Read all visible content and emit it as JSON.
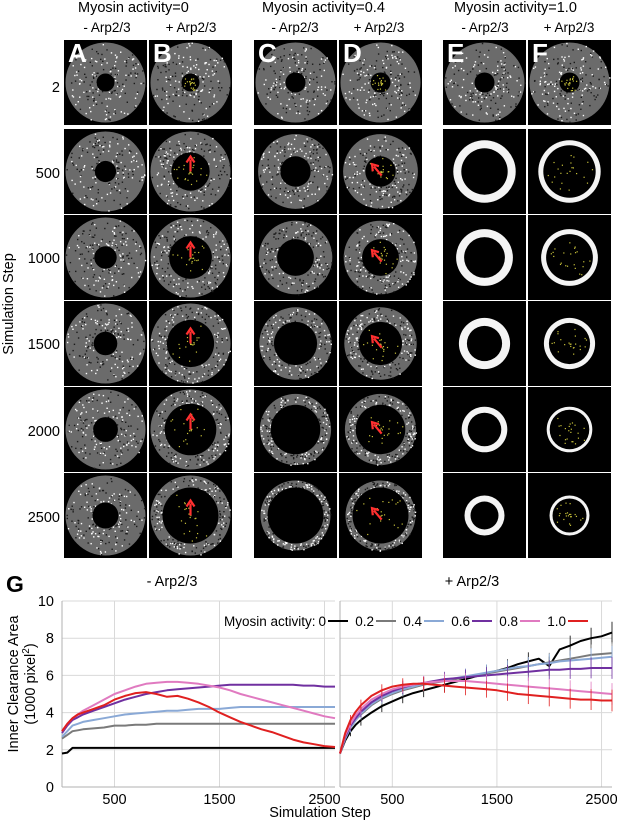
{
  "figure": {
    "group_titles": [
      "Myosin activity=0",
      "Myosin activity=0.4",
      "Myosin activity=1.0"
    ],
    "column_labels": [
      "- Arp2/3",
      "+ Arp2/3",
      "- Arp2/3",
      "+ Arp2/3",
      "- Arp2/3",
      "+ Arp2/3"
    ],
    "panel_letters": [
      "A",
      "B",
      "C",
      "D",
      "E",
      "F"
    ],
    "row_labels": [
      "2",
      "500",
      "1000",
      "1500",
      "2000",
      "2500"
    ],
    "row_axis_label": "Simulation Step"
  },
  "panel_g": {
    "letter": "G",
    "left_title": "- Arp2/3",
    "right_title": "+ Arp2/3",
    "legend_label": "Myosin activity:",
    "ylabel_line1": "Inner Clearance Area",
    "ylabel_line2": "(1000 pixel",
    "ylabel_sup": "2",
    "ylabel_end": ")",
    "xlabel": "Simulation Step"
  },
  "chart_data": {
    "type": "line",
    "xlabel": "Simulation Step",
    "ylabel": "Inner Clearance Area (1000 pixel2)",
    "ylim": [
      0,
      10
    ],
    "yticks": [
      0,
      2,
      4,
      6,
      8,
      10
    ],
    "xticks": [
      500,
      1500,
      2500
    ],
    "xlim": [
      0,
      2600
    ],
    "grid": true,
    "legend_position": "top-right",
    "series_colors": {
      "0": "#000000",
      "0.2": "#7a7a7a",
      "0.4": "#8aa9d6",
      "0.6": "#7030a0",
      "0.8": "#e07ac0",
      "1.0": "#e02020"
    },
    "legend_entries": [
      "0",
      "0.2",
      "0.4",
      "0.6",
      "0.8",
      "1.0"
    ],
    "panels": [
      {
        "name": "- Arp2/3",
        "x": [
          0,
          50,
          100,
          150,
          200,
          300,
          400,
          500,
          600,
          700,
          800,
          900,
          1000,
          1100,
          1200,
          1300,
          1400,
          1500,
          1600,
          1700,
          1800,
          1900,
          2000,
          2100,
          2200,
          2300,
          2400,
          2500,
          2600
        ],
        "series": [
          {
            "name": "0",
            "values": [
              1.8,
              1.85,
              2.1,
              2.1,
              2.1,
              2.1,
              2.1,
              2.1,
              2.1,
              2.1,
              2.1,
              2.1,
              2.1,
              2.1,
              2.1,
              2.1,
              2.1,
              2.1,
              2.1,
              2.1,
              2.1,
              2.1,
              2.1,
              2.1,
              2.1,
              2.1,
              2.1,
              2.1,
              2.1
            ]
          },
          {
            "name": "0.2",
            "values": [
              2.6,
              2.8,
              3.0,
              3.05,
              3.1,
              3.15,
              3.2,
              3.3,
              3.3,
              3.35,
              3.35,
              3.4,
              3.4,
              3.4,
              3.4,
              3.4,
              3.4,
              3.4,
              3.4,
              3.4,
              3.4,
              3.4,
              3.4,
              3.4,
              3.4,
              3.4,
              3.4,
              3.4,
              3.4
            ]
          },
          {
            "name": "0.4",
            "values": [
              2.7,
              3.0,
              3.3,
              3.4,
              3.5,
              3.6,
              3.7,
              3.8,
              3.9,
              3.95,
              4.0,
              4.05,
              4.1,
              4.1,
              4.15,
              4.2,
              4.2,
              4.2,
              4.25,
              4.3,
              4.3,
              4.3,
              4.3,
              4.3,
              4.3,
              4.3,
              4.3,
              4.3,
              4.3
            ]
          },
          {
            "name": "0.6",
            "values": [
              2.9,
              3.3,
              3.6,
              3.75,
              3.9,
              4.1,
              4.3,
              4.5,
              4.7,
              4.85,
              5.0,
              5.1,
              5.2,
              5.25,
              5.3,
              5.35,
              5.4,
              5.45,
              5.5,
              5.5,
              5.5,
              5.5,
              5.5,
              5.5,
              5.5,
              5.45,
              5.45,
              5.4,
              5.4
            ]
          },
          {
            "name": "0.8",
            "values": [
              3.0,
              3.4,
              3.7,
              3.9,
              4.1,
              4.4,
              4.7,
              5.0,
              5.2,
              5.4,
              5.55,
              5.6,
              5.65,
              5.65,
              5.6,
              5.55,
              5.45,
              5.35,
              5.2,
              5.0,
              4.85,
              4.7,
              4.55,
              4.4,
              4.25,
              4.1,
              3.95,
              3.8,
              3.7
            ]
          },
          {
            "name": "1.0",
            "values": [
              3.0,
              3.4,
              3.7,
              3.9,
              4.0,
              4.2,
              4.4,
              4.7,
              4.9,
              5.05,
              5.1,
              5.0,
              4.85,
              4.9,
              4.75,
              4.55,
              4.3,
              4.0,
              3.75,
              3.5,
              3.3,
              3.1,
              2.95,
              2.75,
              2.55,
              2.4,
              2.3,
              2.2,
              2.15
            ]
          }
        ]
      },
      {
        "name": "+ Arp2/3",
        "x": [
          0,
          50,
          100,
          150,
          200,
          300,
          400,
          500,
          600,
          700,
          800,
          900,
          1000,
          1100,
          1200,
          1300,
          1400,
          1500,
          1600,
          1700,
          1800,
          1900,
          2000,
          2100,
          2200,
          2300,
          2400,
          2500,
          2600
        ],
        "series": [
          {
            "name": "0",
            "values": [
              1.8,
              2.5,
              3.0,
              3.35,
              3.6,
              4.0,
              4.35,
              4.6,
              4.85,
              5.05,
              5.2,
              5.35,
              5.5,
              5.65,
              5.8,
              5.95,
              6.1,
              6.25,
              6.4,
              6.6,
              6.75,
              6.9,
              6.5,
              7.4,
              7.6,
              7.85,
              8.0,
              8.1,
              8.3
            ]
          },
          {
            "name": "0.2",
            "values": [
              1.8,
              2.6,
              3.2,
              3.6,
              3.9,
              4.4,
              4.75,
              5.0,
              5.2,
              5.35,
              5.5,
              5.6,
              5.7,
              5.8,
              5.9,
              6.0,
              6.1,
              6.2,
              6.3,
              6.4,
              6.5,
              6.6,
              6.7,
              6.8,
              6.9,
              7.0,
              7.1,
              7.15,
              7.2
            ]
          },
          {
            "name": "0.4",
            "values": [
              1.8,
              2.6,
              3.2,
              3.6,
              3.95,
              4.45,
              4.8,
              5.05,
              5.25,
              5.4,
              5.55,
              5.65,
              5.75,
              5.85,
              5.95,
              6.05,
              6.15,
              6.25,
              6.35,
              6.45,
              6.5,
              6.6,
              6.65,
              6.75,
              6.8,
              6.85,
              6.9,
              6.95,
              7.0
            ]
          },
          {
            "name": "0.6",
            "values": [
              1.8,
              2.7,
              3.3,
              3.7,
              4.05,
              4.55,
              4.9,
              5.15,
              5.35,
              5.5,
              5.6,
              5.7,
              5.8,
              5.85,
              5.9,
              5.95,
              6.0,
              6.05,
              6.1,
              6.15,
              6.2,
              6.25,
              6.3,
              6.3,
              6.35,
              6.35,
              6.4,
              6.4,
              6.4
            ]
          },
          {
            "name": "0.8",
            "values": [
              1.8,
              2.8,
              3.4,
              3.85,
              4.2,
              4.7,
              5.0,
              5.25,
              5.4,
              5.5,
              5.6,
              5.65,
              5.7,
              5.7,
              5.7,
              5.65,
              5.6,
              5.55,
              5.5,
              5.45,
              5.4,
              5.35,
              5.3,
              5.25,
              5.2,
              5.15,
              5.1,
              5.05,
              5.0
            ]
          },
          {
            "name": "1.0",
            "values": [
              1.8,
              2.9,
              3.6,
              4.05,
              4.4,
              4.9,
              5.2,
              5.4,
              5.5,
              5.55,
              5.55,
              5.5,
              5.45,
              5.4,
              5.35,
              5.3,
              5.25,
              5.2,
              5.1,
              5.0,
              4.95,
              4.9,
              4.85,
              4.8,
              4.75,
              4.7,
              4.7,
              4.65,
              4.65
            ]
          }
        ]
      }
    ]
  }
}
